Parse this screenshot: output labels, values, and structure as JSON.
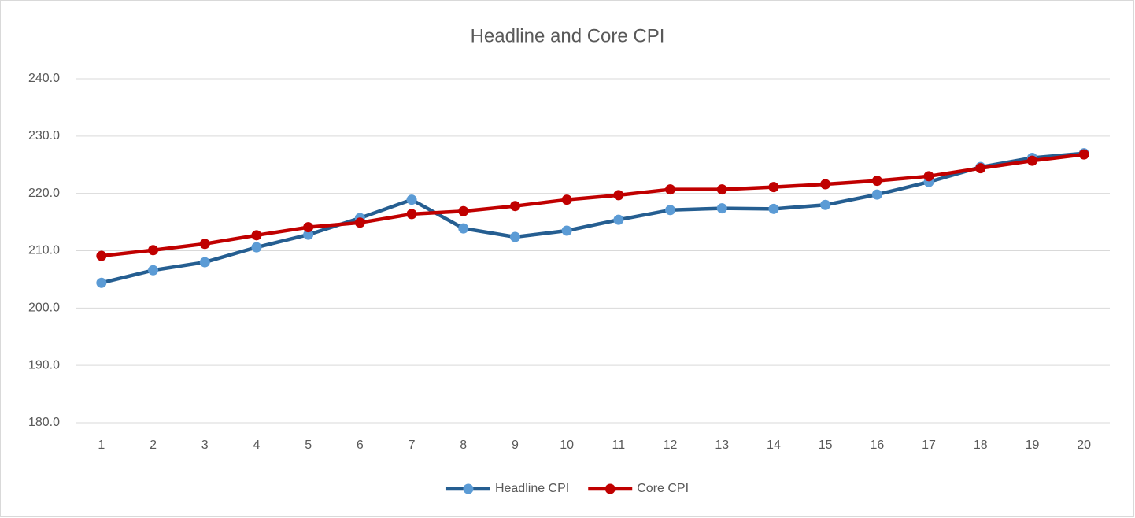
{
  "chart_data": {
    "type": "line",
    "title": "Headline and Core CPI",
    "categories": [
      "1",
      "2",
      "3",
      "4",
      "5",
      "6",
      "7",
      "8",
      "9",
      "10",
      "11",
      "12",
      "13",
      "14",
      "15",
      "16",
      "17",
      "18",
      "19",
      "20"
    ],
    "series": [
      {
        "name": "Headline CPI",
        "color": "#255e91",
        "marker_color": "#5b9bd5",
        "values": [
          204.4,
          206.6,
          208.0,
          210.6,
          212.8,
          215.7,
          218.9,
          213.9,
          212.4,
          213.5,
          215.4,
          217.1,
          217.4,
          217.3,
          218.0,
          219.8,
          222.0,
          224.6,
          226.2,
          227.0
        ]
      },
      {
        "name": "Core CPI",
        "color": "#c00000",
        "marker_color": "#c00000",
        "values": [
          209.1,
          210.1,
          211.2,
          212.7,
          214.1,
          214.9,
          216.4,
          216.9,
          217.8,
          218.9,
          219.7,
          220.7,
          220.7,
          221.1,
          221.6,
          222.2,
          223.0,
          224.4,
          225.7,
          226.8
        ]
      }
    ],
    "ylim": [
      180,
      240
    ],
    "yticks": [
      {
        "value": 180,
        "label": "180.0"
      },
      {
        "value": 190,
        "label": "190.0"
      },
      {
        "value": 200,
        "label": "200.0"
      },
      {
        "value": 210,
        "label": "210.0"
      },
      {
        "value": 220,
        "label": "220.0"
      },
      {
        "value": 230,
        "label": "230.0"
      },
      {
        "value": 240,
        "label": "240.0"
      }
    ],
    "grid": true,
    "legend": "bottom"
  }
}
